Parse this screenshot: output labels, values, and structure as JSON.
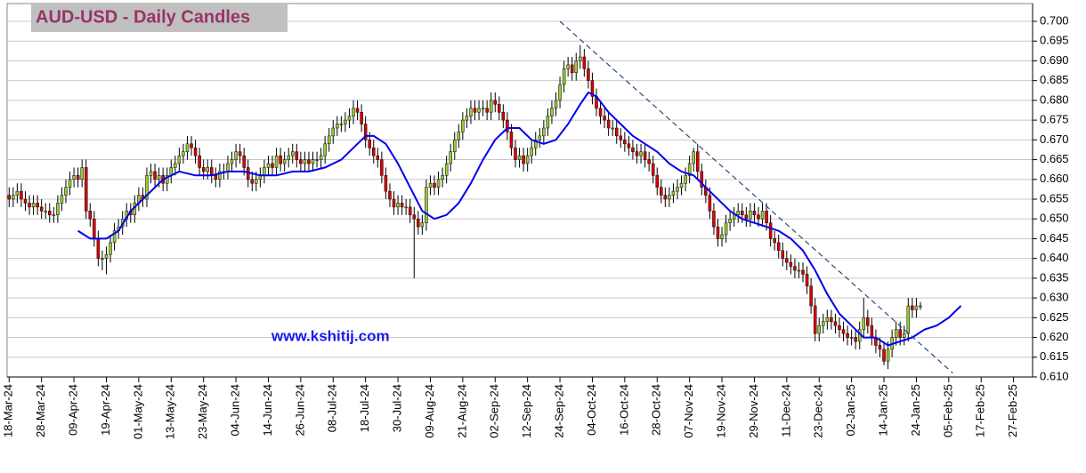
{
  "chart_data": {
    "type": "candlestick",
    "title": "AUD-USD - Daily Candles",
    "annotation": "www.kshitij.com",
    "up_color": "#99cc33",
    "down_color": "#dd0000",
    "grid": true,
    "open": [
      0.656,
      0.655,
      0.656,
      0.657,
      0.655,
      0.654,
      0.653,
      0.654,
      0.653,
      0.652,
      0.652,
      0.651,
      0.651,
      0.654,
      0.656,
      0.658,
      0.66,
      0.661,
      0.66,
      0.663,
      0.652,
      0.65,
      0.645,
      0.64,
      0.64,
      0.641,
      0.644,
      0.647,
      0.648,
      0.65,
      0.652,
      0.651,
      0.654,
      0.656,
      0.655,
      0.661,
      0.662,
      0.66,
      0.661,
      0.659,
      0.661,
      0.663,
      0.664,
      0.666,
      0.667,
      0.669,
      0.668,
      0.666,
      0.663,
      0.662,
      0.663,
      0.661,
      0.66,
      0.662,
      0.662,
      0.664,
      0.665,
      0.667,
      0.666,
      0.663,
      0.66,
      0.659,
      0.66,
      0.661,
      0.663,
      0.664,
      0.663,
      0.666,
      0.664,
      0.665,
      0.666,
      0.667,
      0.665,
      0.664,
      0.665,
      0.664,
      0.665,
      0.665,
      0.666,
      0.669,
      0.671,
      0.673,
      0.674,
      0.674,
      0.675,
      0.676,
      0.678,
      0.677,
      0.674,
      0.67,
      0.668,
      0.666,
      0.665,
      0.661,
      0.657,
      0.655,
      0.653,
      0.654,
      0.653,
      0.653,
      0.651,
      0.65,
      0.648,
      0.649,
      0.658,
      0.659,
      0.658,
      0.66,
      0.661,
      0.664,
      0.667,
      0.67,
      0.672,
      0.675,
      0.676,
      0.678,
      0.677,
      0.678,
      0.678,
      0.677,
      0.68,
      0.679,
      0.677,
      0.675,
      0.672,
      0.668,
      0.665,
      0.666,
      0.664,
      0.666,
      0.668,
      0.67,
      0.671,
      0.673,
      0.676,
      0.678,
      0.68,
      0.684,
      0.688,
      0.689,
      0.687,
      0.69,
      0.691,
      0.688,
      0.685,
      0.681,
      0.678,
      0.676,
      0.675,
      0.673,
      0.673,
      0.671,
      0.67,
      0.669,
      0.668,
      0.667,
      0.666,
      0.667,
      0.665,
      0.664,
      0.661,
      0.658,
      0.656,
      0.655,
      0.656,
      0.657,
      0.658,
      0.659,
      0.661,
      0.664,
      0.667,
      0.662,
      0.658,
      0.656,
      0.652,
      0.648,
      0.645,
      0.646,
      0.649,
      0.65,
      0.651,
      0.652,
      0.651,
      0.65,
      0.652,
      0.651,
      0.65,
      0.652,
      0.649,
      0.645,
      0.644,
      0.642,
      0.64,
      0.639,
      0.638,
      0.637,
      0.637,
      0.636,
      0.633,
      0.628,
      0.621,
      0.623,
      0.624,
      0.625,
      0.624,
      0.623,
      0.622,
      0.621,
      0.62,
      0.62,
      0.619,
      0.622,
      0.625,
      0.623,
      0.62,
      0.618,
      0.617,
      0.614,
      0.617,
      0.62,
      0.622,
      0.62,
      0.621,
      0.628,
      0.627,
      0.628
    ],
    "high": [
      0.658,
      0.658,
      0.659,
      0.659,
      0.657,
      0.656,
      0.656,
      0.656,
      0.655,
      0.654,
      0.654,
      0.653,
      0.656,
      0.658,
      0.66,
      0.662,
      0.663,
      0.663,
      0.665,
      0.665,
      0.654,
      0.652,
      0.647,
      0.642,
      0.643,
      0.646,
      0.649,
      0.65,
      0.652,
      0.654,
      0.654,
      0.656,
      0.658,
      0.658,
      0.663,
      0.664,
      0.664,
      0.663,
      0.663,
      0.663,
      0.665,
      0.666,
      0.668,
      0.669,
      0.671,
      0.671,
      0.67,
      0.668,
      0.665,
      0.665,
      0.665,
      0.663,
      0.664,
      0.664,
      0.666,
      0.667,
      0.669,
      0.669,
      0.668,
      0.665,
      0.662,
      0.662,
      0.663,
      0.665,
      0.666,
      0.666,
      0.668,
      0.668,
      0.667,
      0.668,
      0.669,
      0.669,
      0.667,
      0.667,
      0.667,
      0.667,
      0.667,
      0.668,
      0.671,
      0.673,
      0.675,
      0.676,
      0.676,
      0.677,
      0.678,
      0.68,
      0.68,
      0.679,
      0.676,
      0.672,
      0.67,
      0.668,
      0.667,
      0.663,
      0.659,
      0.657,
      0.656,
      0.656,
      0.655,
      0.655,
      0.653,
      0.652,
      0.651,
      0.66,
      0.661,
      0.661,
      0.662,
      0.663,
      0.666,
      0.669,
      0.672,
      0.674,
      0.677,
      0.678,
      0.68,
      0.68,
      0.68,
      0.68,
      0.68,
      0.682,
      0.682,
      0.681,
      0.679,
      0.677,
      0.674,
      0.67,
      0.668,
      0.668,
      0.668,
      0.67,
      0.672,
      0.673,
      0.675,
      0.678,
      0.68,
      0.682,
      0.686,
      0.69,
      0.691,
      0.691,
      0.692,
      0.694,
      0.693,
      0.69,
      0.687,
      0.683,
      0.68,
      0.678,
      0.677,
      0.675,
      0.675,
      0.673,
      0.672,
      0.671,
      0.67,
      0.669,
      0.669,
      0.669,
      0.667,
      0.666,
      0.663,
      0.66,
      0.658,
      0.658,
      0.659,
      0.66,
      0.661,
      0.663,
      0.666,
      0.668,
      0.669,
      0.664,
      0.66,
      0.658,
      0.654,
      0.65,
      0.648,
      0.651,
      0.652,
      0.653,
      0.654,
      0.654,
      0.653,
      0.654,
      0.654,
      0.653,
      0.654,
      0.654,
      0.651,
      0.647,
      0.646,
      0.644,
      0.642,
      0.641,
      0.64,
      0.639,
      0.639,
      0.638,
      0.635,
      0.63,
      0.625,
      0.626,
      0.627,
      0.627,
      0.626,
      0.625,
      0.624,
      0.623,
      0.622,
      0.622,
      0.624,
      0.63,
      0.627,
      0.625,
      0.622,
      0.62,
      0.619,
      0.619,
      0.622,
      0.624,
      0.624,
      0.623,
      0.63,
      0.63,
      0.63,
      0.629
    ],
    "low": [
      0.653,
      0.653,
      0.654,
      0.653,
      0.652,
      0.651,
      0.651,
      0.651,
      0.65,
      0.65,
      0.649,
      0.649,
      0.649,
      0.652,
      0.654,
      0.656,
      0.658,
      0.658,
      0.658,
      0.65,
      0.648,
      0.643,
      0.638,
      0.637,
      0.636,
      0.639,
      0.642,
      0.645,
      0.646,
      0.648,
      0.649,
      0.649,
      0.652,
      0.653,
      0.653,
      0.659,
      0.658,
      0.658,
      0.657,
      0.657,
      0.659,
      0.661,
      0.662,
      0.664,
      0.665,
      0.666,
      0.664,
      0.661,
      0.66,
      0.66,
      0.659,
      0.658,
      0.658,
      0.66,
      0.66,
      0.662,
      0.663,
      0.664,
      0.661,
      0.658,
      0.657,
      0.657,
      0.658,
      0.659,
      0.661,
      0.661,
      0.661,
      0.662,
      0.662,
      0.663,
      0.664,
      0.663,
      0.662,
      0.662,
      0.662,
      0.662,
      0.663,
      0.663,
      0.664,
      0.667,
      0.669,
      0.671,
      0.672,
      0.672,
      0.673,
      0.674,
      0.675,
      0.672,
      0.668,
      0.666,
      0.664,
      0.663,
      0.659,
      0.655,
      0.653,
      0.651,
      0.651,
      0.651,
      0.651,
      0.649,
      0.635,
      0.646,
      0.646,
      0.647,
      0.656,
      0.656,
      0.656,
      0.658,
      0.659,
      0.662,
      0.665,
      0.668,
      0.67,
      0.673,
      0.674,
      0.675,
      0.675,
      0.676,
      0.675,
      0.675,
      0.677,
      0.675,
      0.673,
      0.67,
      0.666,
      0.663,
      0.663,
      0.662,
      0.662,
      0.664,
      0.666,
      0.668,
      0.669,
      0.671,
      0.674,
      0.676,
      0.678,
      0.682,
      0.686,
      0.685,
      0.685,
      0.688,
      0.686,
      0.683,
      0.679,
      0.676,
      0.674,
      0.673,
      0.671,
      0.671,
      0.669,
      0.668,
      0.667,
      0.666,
      0.665,
      0.664,
      0.664,
      0.663,
      0.662,
      0.659,
      0.656,
      0.654,
      0.653,
      0.653,
      0.654,
      0.655,
      0.656,
      0.657,
      0.659,
      0.662,
      0.66,
      0.656,
      0.654,
      0.65,
      0.646,
      0.643,
      0.643,
      0.644,
      0.647,
      0.648,
      0.649,
      0.649,
      0.648,
      0.648,
      0.649,
      0.648,
      0.648,
      0.647,
      0.643,
      0.642,
      0.64,
      0.638,
      0.637,
      0.636,
      0.635,
      0.635,
      0.634,
      0.631,
      0.626,
      0.619,
      0.619,
      0.621,
      0.622,
      0.622,
      0.621,
      0.62,
      0.619,
      0.618,
      0.618,
      0.617,
      0.617,
      0.62,
      0.621,
      0.618,
      0.616,
      0.615,
      0.613,
      0.612,
      0.615,
      0.618,
      0.618,
      0.618,
      0.619,
      0.625,
      0.625,
      0.627
    ],
    "close": [
      0.655,
      0.656,
      0.657,
      0.655,
      0.654,
      0.653,
      0.654,
      0.653,
      0.652,
      0.652,
      0.651,
      0.651,
      0.654,
      0.656,
      0.658,
      0.66,
      0.661,
      0.66,
      0.663,
      0.652,
      0.65,
      0.645,
      0.64,
      0.64,
      0.641,
      0.644,
      0.647,
      0.648,
      0.65,
      0.652,
      0.651,
      0.654,
      0.656,
      0.655,
      0.661,
      0.662,
      0.66,
      0.661,
      0.659,
      0.661,
      0.663,
      0.664,
      0.666,
      0.667,
      0.669,
      0.668,
      0.666,
      0.663,
      0.662,
      0.663,
      0.661,
      0.66,
      0.662,
      0.662,
      0.664,
      0.665,
      0.667,
      0.666,
      0.663,
      0.66,
      0.659,
      0.66,
      0.661,
      0.663,
      0.664,
      0.663,
      0.666,
      0.664,
      0.665,
      0.666,
      0.667,
      0.665,
      0.664,
      0.665,
      0.664,
      0.665,
      0.665,
      0.666,
      0.669,
      0.671,
      0.673,
      0.674,
      0.674,
      0.675,
      0.676,
      0.678,
      0.677,
      0.674,
      0.67,
      0.668,
      0.666,
      0.665,
      0.661,
      0.657,
      0.655,
      0.653,
      0.654,
      0.653,
      0.653,
      0.651,
      0.65,
      0.648,
      0.649,
      0.658,
      0.659,
      0.658,
      0.66,
      0.661,
      0.664,
      0.667,
      0.67,
      0.672,
      0.675,
      0.676,
      0.678,
      0.677,
      0.678,
      0.678,
      0.677,
      0.68,
      0.679,
      0.677,
      0.675,
      0.672,
      0.668,
      0.665,
      0.666,
      0.664,
      0.666,
      0.668,
      0.67,
      0.671,
      0.673,
      0.676,
      0.678,
      0.68,
      0.684,
      0.688,
      0.689,
      0.687,
      0.69,
      0.691,
      0.688,
      0.685,
      0.681,
      0.678,
      0.676,
      0.675,
      0.673,
      0.673,
      0.671,
      0.67,
      0.669,
      0.668,
      0.667,
      0.666,
      0.667,
      0.665,
      0.664,
      0.661,
      0.658,
      0.656,
      0.655,
      0.656,
      0.657,
      0.658,
      0.659,
      0.661,
      0.664,
      0.667,
      0.662,
      0.658,
      0.656,
      0.652,
      0.648,
      0.645,
      0.646,
      0.649,
      0.65,
      0.651,
      0.652,
      0.651,
      0.65,
      0.652,
      0.651,
      0.65,
      0.652,
      0.649,
      0.645,
      0.644,
      0.642,
      0.64,
      0.639,
      0.638,
      0.637,
      0.637,
      0.636,
      0.633,
      0.628,
      0.621,
      0.623,
      0.624,
      0.625,
      0.624,
      0.623,
      0.622,
      0.621,
      0.62,
      0.62,
      0.619,
      0.622,
      0.625,
      0.623,
      0.62,
      0.618,
      0.617,
      0.614,
      0.617,
      0.62,
      0.622,
      0.62,
      0.621,
      0.628,
      0.627,
      0.628,
      0.628
    ],
    "ma": {
      "color": "#0000ee",
      "x": [
        17,
        20,
        24,
        27,
        30,
        34,
        38,
        42,
        46,
        50,
        54,
        58,
        62,
        66,
        70,
        74,
        78,
        82,
        86,
        88,
        90,
        93,
        96,
        99,
        102,
        105,
        108,
        111,
        114,
        117,
        120,
        123,
        126,
        129,
        132,
        135,
        138,
        141,
        143,
        145,
        148,
        151,
        154,
        157,
        160,
        163,
        166,
        169,
        172,
        175,
        178,
        181,
        184,
        187,
        190,
        193,
        196,
        199,
        202,
        205,
        208,
        211,
        214,
        217,
        220,
        223,
        226,
        229,
        232,
        235
      ],
      "values": [
        0.647,
        0.645,
        0.645,
        0.647,
        0.652,
        0.656,
        0.66,
        0.662,
        0.661,
        0.661,
        0.662,
        0.662,
        0.661,
        0.661,
        0.662,
        0.662,
        0.663,
        0.665,
        0.669,
        0.671,
        0.671,
        0.669,
        0.664,
        0.658,
        0.652,
        0.65,
        0.651,
        0.654,
        0.659,
        0.665,
        0.67,
        0.673,
        0.673,
        0.67,
        0.669,
        0.67,
        0.674,
        0.679,
        0.682,
        0.681,
        0.677,
        0.674,
        0.671,
        0.669,
        0.667,
        0.664,
        0.662,
        0.661,
        0.658,
        0.655,
        0.652,
        0.65,
        0.649,
        0.648,
        0.647,
        0.645,
        0.642,
        0.637,
        0.631,
        0.626,
        0.623,
        0.62,
        0.62,
        0.618,
        0.619,
        0.62,
        0.622,
        0.623,
        0.625,
        0.628
      ]
    },
    "trendline": {
      "color": "#2b4a7a",
      "x": [
        136,
        233
      ],
      "values": [
        0.7,
        0.611
      ]
    },
    "xlim": [
      -0.5,
      252.7
    ],
    "xticks": [
      {
        "value": 0,
        "label": "18-Mar-24"
      },
      {
        "value": 8,
        "label": "28-Mar-24"
      },
      {
        "value": 16,
        "label": "09-Apr-24"
      },
      {
        "value": 24,
        "label": "19-Apr-24"
      },
      {
        "value": 32,
        "label": "01-May-24"
      },
      {
        "value": 40,
        "label": "13-May-24"
      },
      {
        "value": 48,
        "label": "23-May-24"
      },
      {
        "value": 56,
        "label": "04-Jun-24"
      },
      {
        "value": 64,
        "label": "14-Jun-24"
      },
      {
        "value": 72,
        "label": "26-Jun-24"
      },
      {
        "value": 80,
        "label": "08-Jul-24"
      },
      {
        "value": 88,
        "label": "18-Jul-24"
      },
      {
        "value": 96,
        "label": "30-Jul-24"
      },
      {
        "value": 104,
        "label": "09-Aug-24"
      },
      {
        "value": 112,
        "label": "21-Aug-24"
      },
      {
        "value": 120,
        "label": "02-Sep-24"
      },
      {
        "value": 128,
        "label": "12-Sep-24"
      },
      {
        "value": 136,
        "label": "24-Sep-24"
      },
      {
        "value": 144,
        "label": "04-Oct-24"
      },
      {
        "value": 152,
        "label": "16-Oct-24"
      },
      {
        "value": 160,
        "label": "28-Oct-24"
      },
      {
        "value": 168,
        "label": "07-Nov-24"
      },
      {
        "value": 176,
        "label": "19-Nov-24"
      },
      {
        "value": 184,
        "label": "29-Nov-24"
      },
      {
        "value": 192,
        "label": "11-Dec-24"
      },
      {
        "value": 200,
        "label": "23-Dec-24"
      },
      {
        "value": 208,
        "label": "02-Jan-25"
      },
      {
        "value": 216,
        "label": "14-Jan-25"
      },
      {
        "value": 224,
        "label": "24-Jan-25"
      },
      {
        "value": 232,
        "label": "05-Feb-25"
      },
      {
        "value": 240,
        "label": "17-Feb-25"
      },
      {
        "value": 248,
        "label": "27-Feb-25"
      }
    ],
    "ylim": [
      0.61,
      0.7045
    ],
    "yticks": [
      {
        "value": 0.61,
        "label": "0.610"
      },
      {
        "value": 0.615,
        "label": "0.615"
      },
      {
        "value": 0.62,
        "label": "0.620"
      },
      {
        "value": 0.625,
        "label": "0.625"
      },
      {
        "value": 0.63,
        "label": "0.630"
      },
      {
        "value": 0.635,
        "label": "0.635"
      },
      {
        "value": 0.64,
        "label": "0.640"
      },
      {
        "value": 0.645,
        "label": "0.645"
      },
      {
        "value": 0.65,
        "label": "0.650"
      },
      {
        "value": 0.655,
        "label": "0.655"
      },
      {
        "value": 0.66,
        "label": "0.660"
      },
      {
        "value": 0.665,
        "label": "0.665"
      },
      {
        "value": 0.67,
        "label": "0.670"
      },
      {
        "value": 0.675,
        "label": "0.675"
      },
      {
        "value": 0.68,
        "label": "0.680"
      },
      {
        "value": 0.685,
        "label": "0.685"
      },
      {
        "value": 0.69,
        "label": "0.690"
      },
      {
        "value": 0.695,
        "label": "0.695"
      },
      {
        "value": 0.7,
        "label": "0.700"
      }
    ]
  }
}
